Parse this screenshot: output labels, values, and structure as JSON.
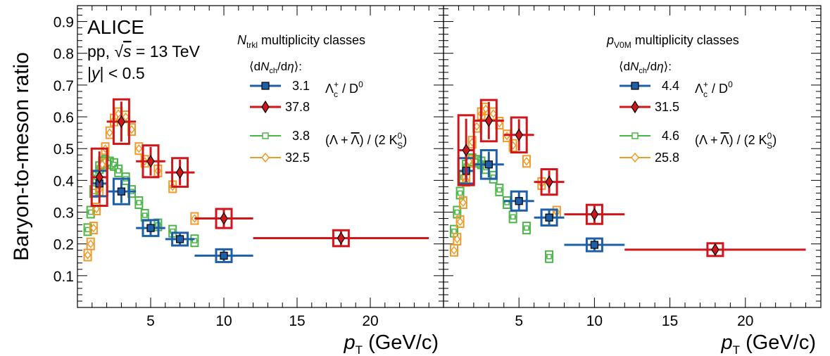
{
  "chart_data": {
    "type": "scatter",
    "ylabel": "Baryon-to-meson ratio",
    "xlabel_base": "p",
    "xlabel_sub": "T",
    "xlabel_unit": "(GeV/c)",
    "ylim": [
      0.0,
      0.95
    ],
    "xlim": [
      0,
      25
    ],
    "xticks": [
      5,
      10,
      15,
      20
    ],
    "yticks": [
      0.1,
      0.2,
      0.3,
      0.4,
      0.5,
      0.6,
      0.7,
      0.8,
      0.9
    ],
    "colors": {
      "blue": "#1f5fa8",
      "red": "#d0161b",
      "green": "#4cb54a",
      "orange": "#ef9a2a"
    },
    "panels": [
      {
        "experiment": "ALICE",
        "system": "pp, √s = 13 TeV",
        "rapidity": "|y| < 0.5",
        "class_var": "N",
        "class_sub": "trkl",
        "class_suffix": " multiplicity classes",
        "dndeta_label": "⟨dN_ch/dη⟩:",
        "lc_label": "Λc+ / D0",
        "lambda_label": "(Λ + Λ) / (2 K0S)",
        "series": [
          {
            "name": "3.1",
            "type": "lc",
            "color": "blue",
            "points": [
              [
                1.5,
                0.39,
                0.5,
                0.04
              ],
              [
                3,
                0.365,
                1,
                0.04
              ],
              [
                5,
                0.25,
                1,
                0.025
              ],
              [
                7,
                0.215,
                1,
                0.02
              ],
              [
                10,
                0.163,
                2,
                0.02
              ]
            ]
          },
          {
            "name": "37.8",
            "type": "lc",
            "color": "red",
            "points": [
              [
                1.5,
                0.41,
                0.5,
                0.09
              ],
              [
                3,
                0.585,
                1,
                0.07
              ],
              [
                5,
                0.46,
                1,
                0.05
              ],
              [
                7,
                0.425,
                1,
                0.045
              ],
              [
                10,
                0.28,
                2,
                0.03
              ],
              [
                18,
                0.218,
                6,
                0.025
              ]
            ]
          },
          {
            "name": "3.8",
            "type": "lambda",
            "color": "green",
            "points": [
              [
                0.7,
                0.245
              ],
              [
                0.9,
                0.3
              ],
              [
                1.1,
                0.365
              ],
              [
                1.3,
                0.41
              ],
              [
                1.5,
                0.44
              ],
              [
                1.7,
                0.455
              ],
              [
                1.9,
                0.46
              ],
              [
                2.2,
                0.455
              ],
              [
                2.5,
                0.45
              ],
              [
                2.8,
                0.43
              ],
              [
                3.3,
                0.405
              ],
              [
                3.7,
                0.365
              ],
              [
                4.2,
                0.33
              ],
              [
                4.6,
                0.29
              ],
              [
                5.5,
                0.26
              ],
              [
                6.5,
                0.24
              ],
              [
                8,
                0.21
              ]
            ]
          },
          {
            "name": "32.5",
            "type": "lambda",
            "color": "orange",
            "points": [
              [
                0.7,
                0.165
              ],
              [
                0.9,
                0.2
              ],
              [
                1.1,
                0.25
              ],
              [
                1.3,
                0.31
              ],
              [
                1.5,
                0.37
              ],
              [
                1.7,
                0.45
              ],
              [
                1.9,
                0.5
              ],
              [
                2.2,
                0.55
              ],
              [
                2.5,
                0.59
              ],
              [
                2.8,
                0.61
              ],
              [
                3.3,
                0.6
              ],
              [
                3.7,
                0.56
              ],
              [
                4.2,
                0.5
              ],
              [
                4.6,
                0.46
              ],
              [
                5.5,
                0.43
              ],
              [
                6.5,
                0.38
              ],
              [
                8,
                0.28
              ]
            ]
          }
        ]
      },
      {
        "experiment": "",
        "system": "",
        "rapidity": "",
        "class_var": "p",
        "class_sub": "V0M",
        "class_suffix": " multiplicity classes",
        "dndeta_label": "⟨dN_ch/dη⟩:",
        "lc_label": "Λc+ / D0",
        "lambda_label": "(Λ + Λ) / (2 K0S)",
        "series": [
          {
            "name": "4.4",
            "type": "lc",
            "color": "blue",
            "points": [
              [
                1.5,
                0.43,
                0.5,
                0.04
              ],
              [
                3,
                0.45,
                1,
                0.045
              ],
              [
                5,
                0.335,
                1,
                0.03
              ],
              [
                7,
                0.283,
                1,
                0.025
              ],
              [
                10,
                0.197,
                2,
                0.02
              ]
            ]
          },
          {
            "name": "31.5",
            "type": "lc",
            "color": "red",
            "points": [
              [
                1.5,
                0.495,
                0.5,
                0.11
              ],
              [
                3,
                0.588,
                1,
                0.065
              ],
              [
                5,
                0.543,
                1,
                0.055
              ],
              [
                7,
                0.395,
                1,
                0.04
              ],
              [
                10,
                0.293,
                2,
                0.03
              ],
              [
                18,
                0.182,
                6,
                0.02
              ]
            ]
          },
          {
            "name": "4.6",
            "type": "lambda",
            "color": "green",
            "points": [
              [
                0.7,
                0.24
              ],
              [
                0.9,
                0.3
              ],
              [
                1.1,
                0.36
              ],
              [
                1.3,
                0.41
              ],
              [
                1.5,
                0.445
              ],
              [
                1.7,
                0.46
              ],
              [
                1.9,
                0.465
              ],
              [
                2.2,
                0.46
              ],
              [
                2.5,
                0.455
              ],
              [
                2.8,
                0.44
              ],
              [
                3.3,
                0.41
              ],
              [
                3.7,
                0.37
              ],
              [
                4.2,
                0.33
              ],
              [
                4.6,
                0.285
              ],
              [
                5.5,
                0.25
              ],
              [
                7,
                0.16
              ]
            ]
          },
          {
            "name": "25.8",
            "type": "lambda",
            "color": "orange",
            "points": [
              [
                0.7,
                0.18
              ],
              [
                0.9,
                0.215
              ],
              [
                1.1,
                0.27
              ],
              [
                1.3,
                0.33
              ],
              [
                1.5,
                0.4
              ],
              [
                1.7,
                0.46
              ],
              [
                1.9,
                0.52
              ],
              [
                2.2,
                0.57
              ],
              [
                2.5,
                0.61
              ],
              [
                2.8,
                0.625
              ],
              [
                3.3,
                0.61
              ],
              [
                3.7,
                0.58
              ],
              [
                4.2,
                0.54
              ],
              [
                4.6,
                0.51
              ],
              [
                5.5,
                0.46
              ],
              [
                6.5,
                0.39
              ],
              [
                7.5,
                0.3
              ]
            ]
          }
        ]
      }
    ]
  }
}
